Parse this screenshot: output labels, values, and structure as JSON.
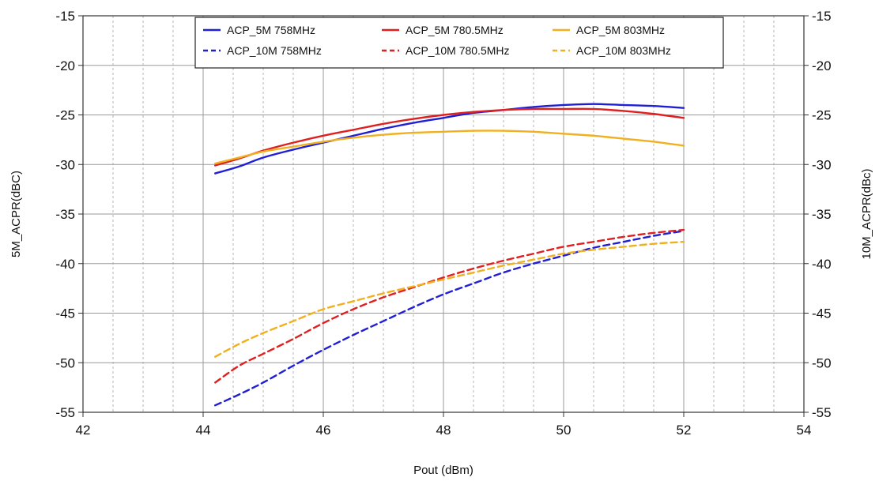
{
  "chart_data": {
    "type": "line",
    "xlabel": "Pout (dBm)",
    "ylabel_left": "5M_ACPR(dBC)",
    "ylabel_right": "10M_ACPR(dBc)",
    "xlim": [
      42,
      54
    ],
    "ylim": [
      -55,
      -15
    ],
    "x_ticks": [
      "42",
      "44",
      "46",
      "48",
      "50",
      "52",
      "54"
    ],
    "y_ticks": [
      "-15",
      "-20",
      "-25",
      "-30",
      "-35",
      "-40",
      "-45",
      "-50",
      "-55"
    ],
    "grid": true,
    "legend_position": "top-center",
    "series": [
      {
        "name": "ACP_5M 758MHz",
        "color": "#1f1fd6",
        "style": "solid",
        "x": [
          44.2,
          44.6,
          45.0,
          45.5,
          46.0,
          46.5,
          47.0,
          47.5,
          48.0,
          48.5,
          49.0,
          49.5,
          50.0,
          50.5,
          51.0,
          51.5,
          52.0
        ],
        "y": [
          -30.9,
          -30.2,
          -29.3,
          -28.5,
          -27.8,
          -27.1,
          -26.4,
          -25.8,
          -25.3,
          -24.8,
          -24.5,
          -24.2,
          -24.0,
          -23.9,
          -24.0,
          -24.1,
          -24.3
        ]
      },
      {
        "name": "ACP_5M 780.5MHz",
        "color": "#e02020",
        "style": "solid",
        "x": [
          44.2,
          44.6,
          45.0,
          45.5,
          46.0,
          46.5,
          47.0,
          47.5,
          48.0,
          48.5,
          49.0,
          49.5,
          50.0,
          50.5,
          51.0,
          51.5,
          52.0
        ],
        "y": [
          -30.1,
          -29.4,
          -28.6,
          -27.8,
          -27.1,
          -26.5,
          -25.9,
          -25.4,
          -25.0,
          -24.7,
          -24.5,
          -24.4,
          -24.4,
          -24.4,
          -24.6,
          -24.9,
          -25.3
        ]
      },
      {
        "name": "ACP_5M 803MHz",
        "color": "#f0b020",
        "style": "solid",
        "x": [
          44.2,
          44.6,
          45.0,
          45.5,
          46.0,
          46.5,
          47.0,
          47.5,
          48.0,
          48.5,
          49.0,
          49.5,
          50.0,
          50.5,
          51.0,
          51.5,
          52.0
        ],
        "y": [
          -29.9,
          -29.3,
          -28.7,
          -28.2,
          -27.7,
          -27.3,
          -27.0,
          -26.8,
          -26.7,
          -26.6,
          -26.6,
          -26.7,
          -26.9,
          -27.1,
          -27.4,
          -27.7,
          -28.1
        ]
      },
      {
        "name": "ACP_10M 758MHz",
        "color": "#1f1fd6",
        "style": "dashed",
        "x": [
          44.2,
          44.6,
          45.0,
          45.5,
          46.0,
          46.5,
          47.0,
          47.5,
          48.0,
          48.5,
          49.0,
          49.5,
          50.0,
          50.5,
          51.0,
          51.5,
          52.0
        ],
        "y": [
          -54.3,
          -53.2,
          -52.0,
          -50.3,
          -48.7,
          -47.2,
          -45.8,
          -44.4,
          -43.1,
          -42.0,
          -40.9,
          -40.0,
          -39.2,
          -38.4,
          -37.8,
          -37.2,
          -36.7
        ]
      },
      {
        "name": "ACP_10M 780.5MHz",
        "color": "#e02020",
        "style": "dashed",
        "x": [
          44.2,
          44.6,
          45.0,
          45.5,
          46.0,
          46.5,
          47.0,
          47.5,
          48.0,
          48.5,
          49.0,
          49.5,
          50.0,
          50.5,
          51.0,
          51.5,
          52.0
        ],
        "y": [
          -52.0,
          -50.3,
          -49.1,
          -47.6,
          -46.0,
          -44.6,
          -43.4,
          -42.4,
          -41.4,
          -40.5,
          -39.7,
          -39.0,
          -38.3,
          -37.8,
          -37.3,
          -36.9,
          -36.6
        ]
      },
      {
        "name": "ACP_10M 803MHz",
        "color": "#f0b020",
        "style": "dashed",
        "x": [
          44.2,
          44.6,
          45.0,
          45.5,
          46.0,
          46.5,
          47.0,
          47.5,
          48.0,
          48.5,
          49.0,
          49.5,
          50.0,
          50.5,
          51.0,
          51.5,
          52.0
        ],
        "y": [
          -49.4,
          -48.1,
          -47.0,
          -45.8,
          -44.6,
          -43.8,
          -43.0,
          -42.3,
          -41.6,
          -40.9,
          -40.2,
          -39.6,
          -39.0,
          -38.6,
          -38.3,
          -38.0,
          -37.8
        ]
      }
    ]
  }
}
